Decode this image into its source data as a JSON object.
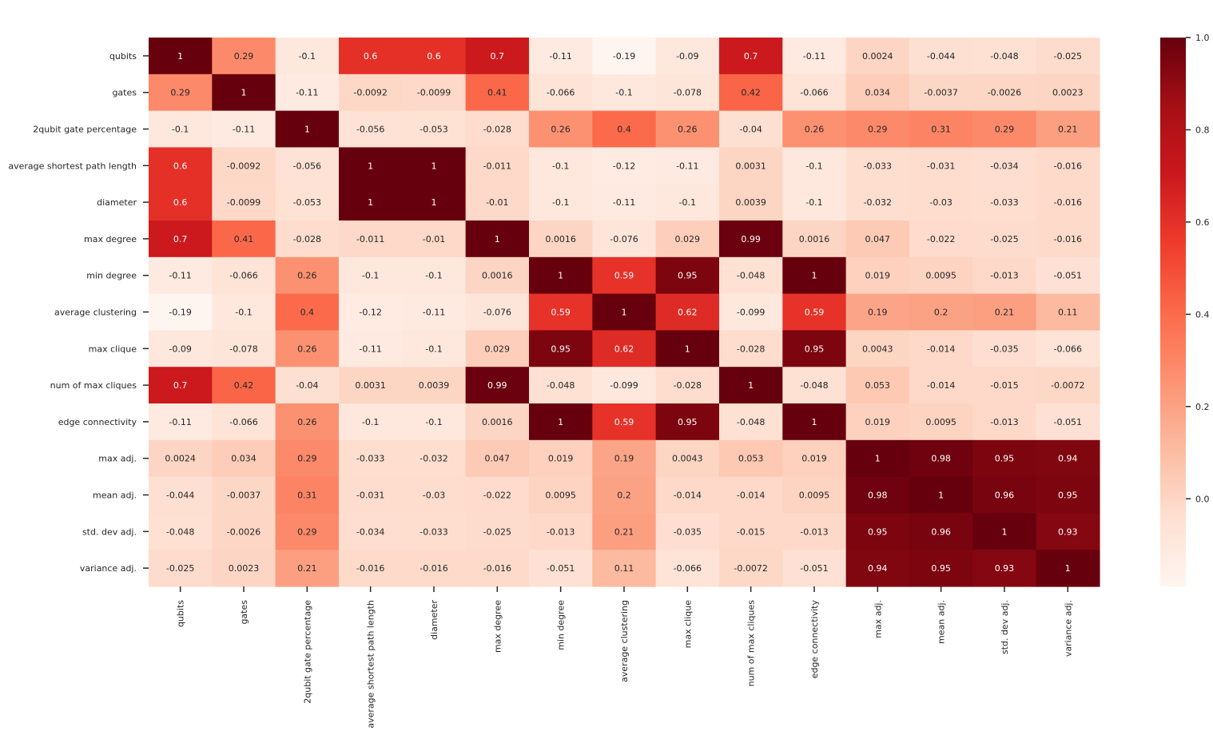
{
  "chart_data": {
    "type": "heatmap",
    "title": "",
    "xlabel": "",
    "ylabel": "",
    "color_map": "Reds",
    "color_range": [
      -0.19,
      1.0
    ],
    "colorbar_ticks": [
      {
        "value": 0.0,
        "label": "0.0"
      },
      {
        "value": 0.2,
        "label": "0.2"
      },
      {
        "value": 0.4,
        "label": "0.4"
      },
      {
        "value": 0.6,
        "label": "0.6"
      },
      {
        "value": 0.8,
        "label": "0.8"
      },
      {
        "value": 1.0,
        "label": "1.0"
      }
    ],
    "labels": [
      "qubits",
      "gates",
      "2qubit gate percentage",
      "average shortest path length",
      "diameter",
      "max degree",
      "min degree",
      "average clustering",
      "max clique",
      "num of max cliques",
      "edge connectivity",
      "max adj.",
      "mean adj.",
      "std. dev adj.",
      "variance adj."
    ],
    "matrix": [
      [
        1,
        0.29,
        -0.1,
        0.6,
        0.6,
        0.7,
        -0.11,
        -0.19,
        -0.09,
        0.7,
        -0.11,
        0.0024,
        -0.044,
        -0.048,
        -0.025
      ],
      [
        0.29,
        1,
        -0.11,
        -0.0092,
        -0.0099,
        0.41,
        -0.066,
        -0.1,
        -0.078,
        0.42,
        -0.066,
        0.034,
        -0.0037,
        -0.0026,
        0.0023
      ],
      [
        -0.1,
        -0.11,
        1,
        -0.056,
        -0.053,
        -0.028,
        0.26,
        0.4,
        0.26,
        -0.04,
        0.26,
        0.29,
        0.31,
        0.29,
        0.21
      ],
      [
        0.6,
        -0.0092,
        -0.056,
        1,
        1,
        -0.011,
        -0.1,
        -0.12,
        -0.11,
        0.0031,
        -0.1,
        -0.033,
        -0.031,
        -0.034,
        -0.016
      ],
      [
        0.6,
        -0.0099,
        -0.053,
        1,
        1,
        -0.01,
        -0.1,
        -0.11,
        -0.1,
        0.0039,
        -0.1,
        -0.032,
        -0.03,
        -0.033,
        -0.016
      ],
      [
        0.7,
        0.41,
        -0.028,
        -0.011,
        -0.01,
        1,
        0.0016,
        -0.076,
        0.029,
        0.99,
        0.0016,
        0.047,
        -0.022,
        -0.025,
        -0.016
      ],
      [
        -0.11,
        -0.066,
        0.26,
        -0.1,
        -0.1,
        0.0016,
        1,
        0.59,
        0.95,
        -0.048,
        1,
        0.019,
        0.0095,
        -0.013,
        -0.051
      ],
      [
        -0.19,
        -0.1,
        0.4,
        -0.12,
        -0.11,
        -0.076,
        0.59,
        1,
        0.62,
        -0.099,
        0.59,
        0.19,
        0.2,
        0.21,
        0.11
      ],
      [
        -0.09,
        -0.078,
        0.26,
        -0.11,
        -0.1,
        0.029,
        0.95,
        0.62,
        1,
        -0.028,
        0.95,
        0.0043,
        -0.014,
        -0.035,
        -0.066
      ],
      [
        0.7,
        0.42,
        -0.04,
        0.0031,
        0.0039,
        0.99,
        -0.048,
        -0.099,
        -0.028,
        1,
        -0.048,
        0.053,
        -0.014,
        -0.015,
        -0.0072
      ],
      [
        -0.11,
        -0.066,
        0.26,
        -0.1,
        -0.1,
        0.0016,
        1,
        0.59,
        0.95,
        -0.048,
        1,
        0.019,
        0.0095,
        -0.013,
        -0.051
      ],
      [
        0.0024,
        0.034,
        0.29,
        -0.033,
        -0.032,
        0.047,
        0.019,
        0.19,
        0.0043,
        0.053,
        0.019,
        1,
        0.98,
        0.95,
        0.94
      ],
      [
        -0.044,
        -0.0037,
        0.31,
        -0.031,
        -0.03,
        -0.022,
        0.0095,
        0.2,
        -0.014,
        -0.014,
        0.0095,
        0.98,
        1,
        0.96,
        0.95
      ],
      [
        -0.048,
        -0.0026,
        0.29,
        -0.034,
        -0.033,
        -0.025,
        -0.013,
        0.21,
        -0.035,
        -0.015,
        -0.013,
        0.95,
        0.96,
        1,
        0.93
      ],
      [
        -0.025,
        0.0023,
        0.21,
        -0.016,
        -0.016,
        -0.016,
        -0.051,
        0.11,
        -0.066,
        -0.0072,
        -0.051,
        0.94,
        0.95,
        0.93,
        1
      ]
    ]
  }
}
